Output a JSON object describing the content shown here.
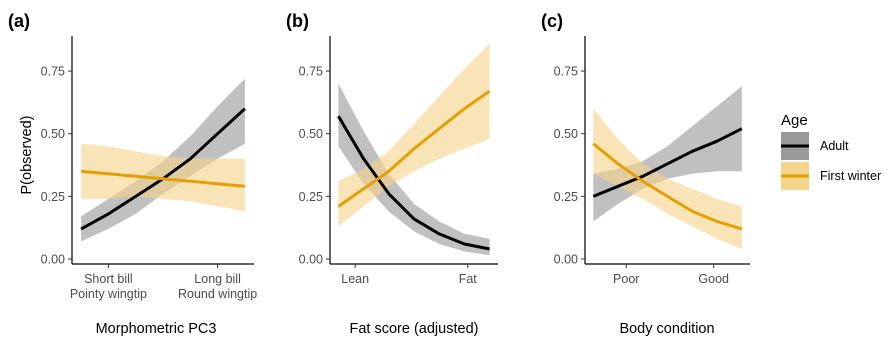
{
  "figure": {
    "y_axis_title": "P(observed)",
    "legend": {
      "title": "Age",
      "position": "right",
      "entries": [
        {
          "label": "Adult",
          "line_color": "#000000",
          "band_color": "#999999"
        },
        {
          "label": "First winter",
          "line_color": "#E69F00",
          "band_color": "#F5D48C"
        }
      ]
    }
  },
  "chart_data": [
    {
      "type": "line",
      "panel_tag": "(a)",
      "xlabel": "Morphometric PC3",
      "ylabel": "P(observed)",
      "xlim": [
        0,
        1
      ],
      "ylim": [
        -0.02,
        0.89
      ],
      "y_ticks": [
        0.0,
        0.25,
        0.5,
        0.75
      ],
      "y_tick_labels": [
        "0.00",
        "0.25",
        "0.50",
        "0.75"
      ],
      "x_ticks": [
        {
          "x": 0.2,
          "lines": [
            "Short bill",
            "Pointy wingtip"
          ]
        },
        {
          "x": 0.8,
          "lines": [
            "Long bill",
            "Round wingtip"
          ]
        }
      ],
      "grid": false,
      "series": [
        {
          "name": "Adult",
          "color": "#000000",
          "band_color": "#999999",
          "x": [
            0.05,
            0.2,
            0.35,
            0.5,
            0.65,
            0.8,
            0.95
          ],
          "y": [
            0.12,
            0.18,
            0.25,
            0.32,
            0.4,
            0.5,
            0.6
          ],
          "lower": [
            0.07,
            0.12,
            0.18,
            0.26,
            0.33,
            0.4,
            0.46
          ],
          "upper": [
            0.17,
            0.24,
            0.31,
            0.39,
            0.49,
            0.61,
            0.72
          ]
        },
        {
          "name": "First winter",
          "color": "#E69F00",
          "band_color": "#F5D48C",
          "x": [
            0.05,
            0.2,
            0.35,
            0.5,
            0.65,
            0.8,
            0.95
          ],
          "y": [
            0.35,
            0.34,
            0.33,
            0.32,
            0.31,
            0.3,
            0.29
          ],
          "lower": [
            0.24,
            0.24,
            0.25,
            0.24,
            0.23,
            0.21,
            0.19
          ],
          "upper": [
            0.46,
            0.45,
            0.43,
            0.41,
            0.4,
            0.4,
            0.4
          ]
        }
      ]
    },
    {
      "type": "line",
      "panel_tag": "(b)",
      "xlabel": "Fat score (adjusted)",
      "ylabel": "",
      "xlim": [
        0,
        1
      ],
      "ylim": [
        -0.02,
        0.89
      ],
      "y_ticks": [
        0.0,
        0.25,
        0.5,
        0.75
      ],
      "y_tick_labels": [
        "0.00",
        "0.25",
        "0.50",
        "0.75"
      ],
      "x_ticks": [
        {
          "x": 0.15,
          "lines": [
            "Lean"
          ]
        },
        {
          "x": 0.82,
          "lines": [
            "Fat"
          ]
        }
      ],
      "grid": false,
      "series": [
        {
          "name": "Adult",
          "color": "#000000",
          "band_color": "#999999",
          "x": [
            0.05,
            0.2,
            0.35,
            0.5,
            0.65,
            0.8,
            0.95
          ],
          "y": [
            0.57,
            0.4,
            0.26,
            0.16,
            0.1,
            0.06,
            0.04
          ],
          "lower": [
            0.45,
            0.3,
            0.19,
            0.11,
            0.06,
            0.03,
            0.015
          ],
          "upper": [
            0.7,
            0.51,
            0.34,
            0.22,
            0.15,
            0.1,
            0.08
          ]
        },
        {
          "name": "First winter",
          "color": "#E69F00",
          "band_color": "#F5D48C",
          "x": [
            0.05,
            0.2,
            0.35,
            0.5,
            0.65,
            0.8,
            0.95
          ],
          "y": [
            0.21,
            0.28,
            0.35,
            0.44,
            0.52,
            0.6,
            0.67
          ],
          "lower": [
            0.13,
            0.21,
            0.29,
            0.35,
            0.4,
            0.44,
            0.48
          ],
          "upper": [
            0.31,
            0.36,
            0.43,
            0.54,
            0.65,
            0.76,
            0.86
          ]
        }
      ]
    },
    {
      "type": "line",
      "panel_tag": "(c)",
      "xlabel": "Body condition",
      "ylabel": "",
      "xlim": [
        0,
        1
      ],
      "ylim": [
        -0.02,
        0.89
      ],
      "y_ticks": [
        0.0,
        0.25,
        0.5,
        0.75
      ],
      "y_tick_labels": [
        "0.00",
        "0.25",
        "0.50",
        "0.75"
      ],
      "x_ticks": [
        {
          "x": 0.25,
          "lines": [
            "Poor"
          ]
        },
        {
          "x": 0.78,
          "lines": [
            "Good"
          ]
        }
      ],
      "grid": false,
      "series": [
        {
          "name": "Adult",
          "color": "#000000",
          "band_color": "#999999",
          "x": [
            0.05,
            0.2,
            0.35,
            0.5,
            0.65,
            0.8,
            0.95
          ],
          "y": [
            0.25,
            0.29,
            0.33,
            0.38,
            0.43,
            0.47,
            0.52
          ],
          "lower": [
            0.15,
            0.22,
            0.28,
            0.32,
            0.34,
            0.35,
            0.35
          ],
          "upper": [
            0.34,
            0.36,
            0.39,
            0.45,
            0.53,
            0.61,
            0.69
          ]
        },
        {
          "name": "First winter",
          "color": "#E69F00",
          "band_color": "#F5D48C",
          "x": [
            0.05,
            0.2,
            0.35,
            0.5,
            0.65,
            0.8,
            0.95
          ],
          "y": [
            0.46,
            0.38,
            0.31,
            0.25,
            0.19,
            0.15,
            0.12
          ],
          "lower": [
            0.34,
            0.29,
            0.24,
            0.18,
            0.13,
            0.08,
            0.04
          ],
          "upper": [
            0.6,
            0.48,
            0.38,
            0.32,
            0.28,
            0.24,
            0.21
          ]
        }
      ]
    }
  ]
}
